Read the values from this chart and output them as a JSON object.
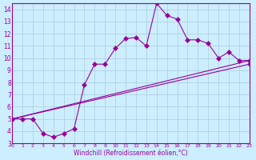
{
  "xlabel": "Windchill (Refroidissement éolien,°C)",
  "bg_color": "#cceeff",
  "line_color": "#990099",
  "grid_color": "#aaccdd",
  "xlim": [
    0,
    23
  ],
  "ylim": [
    3,
    14.5
  ],
  "yticks": [
    3,
    4,
    5,
    6,
    7,
    8,
    9,
    10,
    11,
    12,
    13,
    14
  ],
  "xticks": [
    0,
    1,
    2,
    3,
    4,
    5,
    6,
    7,
    8,
    9,
    10,
    11,
    12,
    13,
    14,
    15,
    16,
    17,
    18,
    19,
    20,
    21,
    22,
    23
  ],
  "line1_x": [
    0,
    1,
    2,
    3,
    4,
    5,
    6,
    7,
    8,
    9,
    10,
    11,
    12,
    13,
    14,
    15,
    16,
    17,
    18,
    19,
    20,
    21,
    22,
    23
  ],
  "line1_y": [
    5.0,
    5.0,
    5.0,
    3.8,
    3.5,
    3.8,
    4.2,
    7.8,
    9.5,
    9.5,
    10.8,
    11.6,
    11.7,
    11.0,
    14.5,
    13.5,
    13.2,
    11.5,
    11.5,
    11.2,
    10.0,
    10.5,
    9.8,
    9.8
  ],
  "line2_x": [
    0,
    23
  ],
  "line2_y": [
    5.0,
    9.8
  ],
  "line3_x": [
    0,
    23
  ],
  "line3_y": [
    5.0,
    9.5
  ],
  "markersize": 3
}
